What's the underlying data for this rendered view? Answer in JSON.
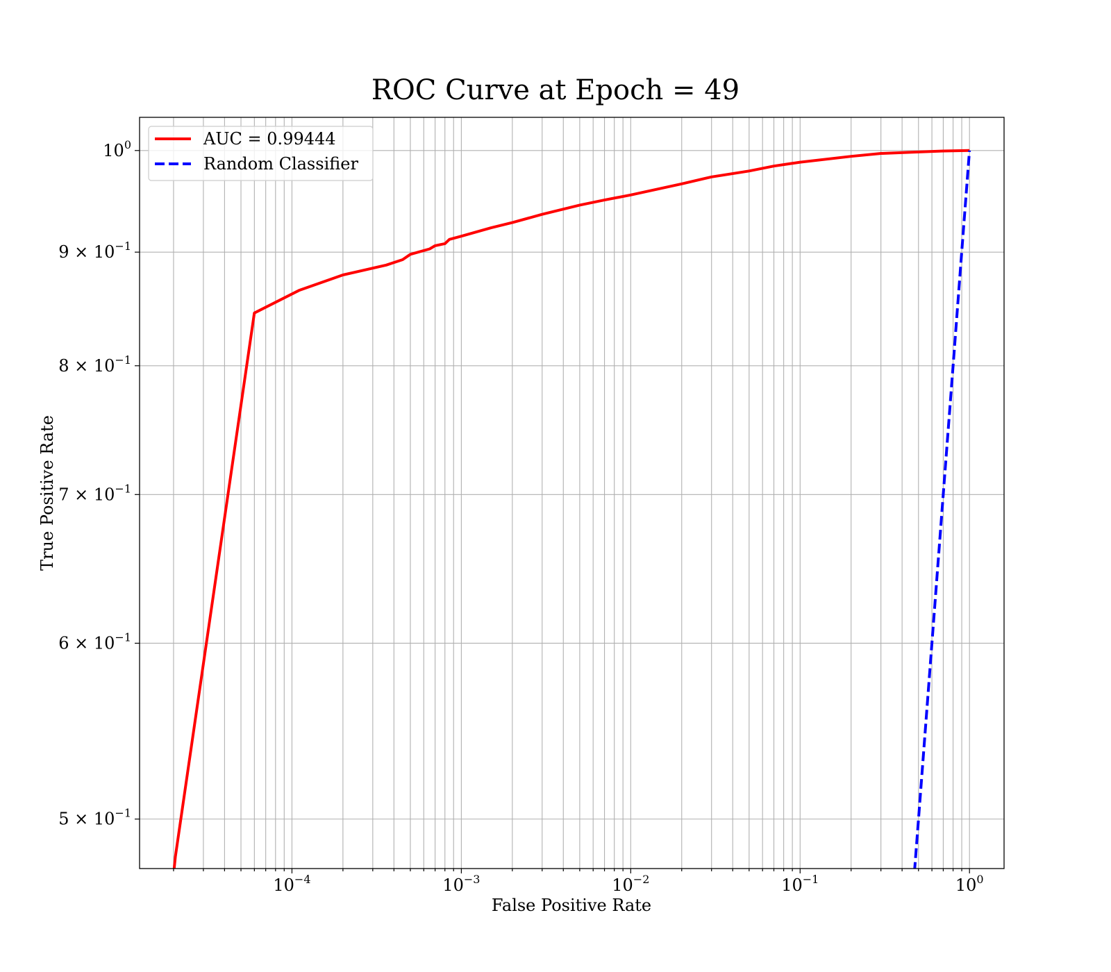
{
  "chart_data": {
    "type": "line",
    "title": "ROC Curve at Epoch = 49",
    "xlabel": "False Positive Rate",
    "ylabel": "True Positive Rate",
    "xscale": "log",
    "yscale": "log",
    "xlim": [
      1.26e-05,
      1.6
    ],
    "ylim": [
      0.475,
      1.035
    ],
    "grid": true,
    "legend_position": "upper-left",
    "x_ticks": [
      {
        "value": 0.0001,
        "base": "10",
        "exp": "−4"
      },
      {
        "value": 0.001,
        "base": "10",
        "exp": "−3"
      },
      {
        "value": 0.01,
        "base": "10",
        "exp": "−2"
      },
      {
        "value": 0.1,
        "base": "10",
        "exp": "−1"
      },
      {
        "value": 1,
        "base": "10",
        "exp": "0"
      }
    ],
    "y_ticks": [
      {
        "value": 1.0,
        "base": "10",
        "exp": "0"
      },
      {
        "value": 0.9,
        "base": "9 × 10",
        "exp": "−1"
      },
      {
        "value": 0.8,
        "base": "8 × 10",
        "exp": "−1"
      },
      {
        "value": 0.7,
        "base": "7 × 10",
        "exp": "−1"
      },
      {
        "value": 0.6,
        "base": "6 × 10",
        "exp": "−1"
      },
      {
        "value": 0.5,
        "base": "5 × 10",
        "exp": "−1"
      }
    ],
    "series": [
      {
        "name": "AUC = 0.99444",
        "color": "#ff0000",
        "style": "solid",
        "x": [
          2e-05,
          2.05e-05,
          6e-05,
          0.00011,
          0.0002,
          0.00036,
          0.00045,
          0.0005,
          0.00065,
          0.0007,
          0.0008,
          0.00085,
          0.001,
          0.0015,
          0.002,
          0.003,
          0.005,
          0.007,
          0.01,
          0.02,
          0.03,
          0.05,
          0.07,
          0.1,
          0.2,
          0.3,
          0.5,
          0.7,
          1.0
        ],
        "y": [
          0.472,
          0.481,
          0.845,
          0.865,
          0.879,
          0.888,
          0.893,
          0.898,
          0.903,
          0.906,
          0.908,
          0.912,
          0.915,
          0.923,
          0.928,
          0.936,
          0.945,
          0.95,
          0.955,
          0.966,
          0.973,
          0.979,
          0.984,
          0.988,
          0.994,
          0.997,
          0.9985,
          0.9995,
          1.0
        ]
      },
      {
        "name": "Random Classifier",
        "color": "#0000ff",
        "style": "dashed",
        "x": [
          0.46,
          0.5,
          0.6,
          0.7,
          0.8,
          0.9,
          1.0
        ],
        "y": [
          0.46,
          0.5,
          0.6,
          0.7,
          0.8,
          0.9,
          1.0
        ]
      }
    ]
  }
}
